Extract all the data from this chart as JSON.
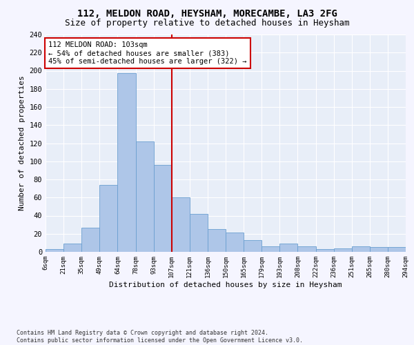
{
  "title_line1": "112, MELDON ROAD, HEYSHAM, MORECAMBE, LA3 2FG",
  "title_line2": "Size of property relative to detached houses in Heysham",
  "xlabel": "Distribution of detached houses by size in Heysham",
  "ylabel": "Number of detached properties",
  "footnote": "Contains HM Land Registry data © Crown copyright and database right 2024.\nContains public sector information licensed under the Open Government Licence v3.0.",
  "tick_labels": [
    "6sqm",
    "21sqm",
    "35sqm",
    "49sqm",
    "64sqm",
    "78sqm",
    "93sqm",
    "107sqm",
    "121sqm",
    "136sqm",
    "150sqm",
    "165sqm",
    "179sqm",
    "193sqm",
    "208sqm",
    "222sqm",
    "236sqm",
    "251sqm",
    "265sqm",
    "280sqm",
    "294sqm"
  ],
  "bar_values": [
    3,
    9,
    27,
    74,
    197,
    122,
    96,
    60,
    42,
    25,
    21,
    13,
    6,
    9,
    6,
    3,
    4,
    6,
    5,
    5
  ],
  "bar_color": "#aec6e8",
  "bar_edge_color": "#6a9fd0",
  "background_color": "#e8eef8",
  "fig_background_color": "#f5f5ff",
  "annotation_box_text": "112 MELDON ROAD: 103sqm\n← 54% of detached houses are smaller (383)\n45% of semi-detached houses are larger (322) →",
  "vline_x_tick": 7,
  "vline_color": "#cc0000",
  "ylim": [
    0,
    240
  ],
  "yticks": [
    0,
    20,
    40,
    60,
    80,
    100,
    120,
    140,
    160,
    180,
    200,
    220,
    240
  ],
  "annotation_box_color": "#cc0000",
  "annotation_text_fontsize": 7.5,
  "grid_color": "#ffffff",
  "title_fontsize1": 10,
  "title_fontsize2": 9,
  "ylabel_fontsize": 8,
  "xlabel_fontsize": 8,
  "ytick_fontsize": 7.5,
  "xtick_fontsize": 6.5
}
